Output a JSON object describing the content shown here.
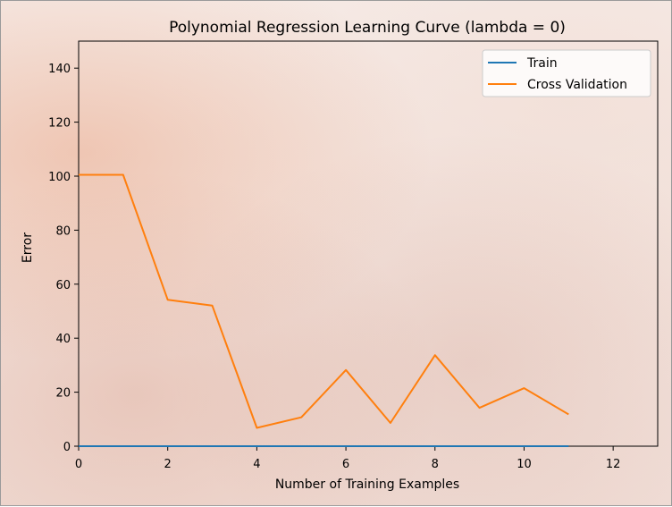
{
  "chart_data": {
    "type": "line",
    "title": "Polynomial Regression Learning Curve (lambda = 0)",
    "xlabel": "Number of Training Examples",
    "ylabel": "Error",
    "xlim": [
      0,
      13
    ],
    "ylim": [
      0,
      150
    ],
    "xticks": [
      0,
      2,
      4,
      6,
      8,
      10,
      12
    ],
    "yticks": [
      0,
      20,
      40,
      60,
      80,
      100,
      120,
      140
    ],
    "grid": false,
    "legend_position": "top-right",
    "series": [
      {
        "name": "Train",
        "color": "#1f77b4",
        "x": [
          0,
          1,
          2,
          3,
          4,
          5,
          6,
          7,
          8,
          9,
          10,
          11
        ],
        "y": [
          0,
          0,
          0,
          0,
          0,
          0,
          0,
          0,
          0,
          0,
          0,
          0
        ]
      },
      {
        "name": "Cross Validation",
        "color": "#ff7f0e",
        "x": [
          0,
          1,
          2,
          3,
          4,
          5,
          6,
          7,
          8,
          9,
          10,
          11
        ],
        "y": [
          100.5,
          100.5,
          54.2,
          52.1,
          6.8,
          10.7,
          28.2,
          8.6,
          33.7,
          14.2,
          21.5,
          11.8
        ]
      }
    ]
  }
}
